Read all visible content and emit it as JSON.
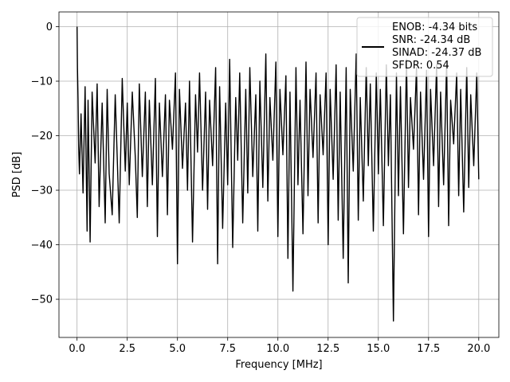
{
  "chart_data": {
    "type": "line",
    "xlabel": "Frequency [MHz]",
    "ylabel": "PSD [dB]",
    "xlim": [
      -0.9,
      21.0
    ],
    "ylim": [
      -57,
      2.7
    ],
    "xticks": [
      0.0,
      2.5,
      5.0,
      7.5,
      10.0,
      12.5,
      15.0,
      17.5,
      20.0
    ],
    "xtick_labels": [
      "0.0",
      "2.5",
      "5.0",
      "7.5",
      "10.0",
      "12.5",
      "15.0",
      "17.5",
      "20.0"
    ],
    "yticks": [
      0,
      -10,
      -20,
      -30,
      -40,
      -50
    ],
    "ytick_labels": [
      "0",
      "−10",
      "−20",
      "−30",
      "−40",
      "−50"
    ],
    "grid": true,
    "legend_position": "top-right",
    "legend": [
      "ENOB: -4.34 bits",
      "SNR: -24.34 dB",
      "SINAD: -24.37 dB",
      "SFDR: 0.54"
    ],
    "series_color": "#000000",
    "series": [
      {
        "values_note_free": true,
        "x": [
          0.0,
          0.02,
          0.05,
          0.08,
          0.12,
          0.2,
          0.3,
          0.4,
          0.5,
          0.55,
          0.65,
          0.75,
          0.9,
          1.0,
          1.1,
          1.25,
          1.4,
          1.5,
          1.6,
          1.75,
          1.9,
          2.0,
          2.1,
          2.25,
          2.4,
          2.5,
          2.6,
          2.75,
          2.9,
          3.0,
          3.1,
          3.25,
          3.4,
          3.5,
          3.6,
          3.75,
          3.9,
          4.0,
          4.1,
          4.25,
          4.4,
          4.5,
          4.6,
          4.75,
          4.9,
          5.0,
          5.1,
          5.25,
          5.4,
          5.5,
          5.6,
          5.75,
          5.9,
          6.0,
          6.1,
          6.25,
          6.4,
          6.5,
          6.6,
          6.75,
          6.9,
          7.0,
          7.1,
          7.25,
          7.4,
          7.5,
          7.6,
          7.75,
          7.9,
          8.0,
          8.1,
          8.25,
          8.4,
          8.5,
          8.6,
          8.75,
          8.9,
          9.0,
          9.1,
          9.25,
          9.4,
          9.5,
          9.6,
          9.75,
          9.9,
          10.0,
          10.1,
          10.25,
          10.4,
          10.5,
          10.6,
          10.75,
          10.9,
          11.0,
          11.1,
          11.25,
          11.4,
          11.5,
          11.6,
          11.75,
          11.9,
          12.0,
          12.1,
          12.25,
          12.4,
          12.5,
          12.6,
          12.75,
          12.9,
          13.0,
          13.1,
          13.25,
          13.4,
          13.5,
          13.6,
          13.75,
          13.9,
          14.0,
          14.1,
          14.25,
          14.4,
          14.5,
          14.6,
          14.75,
          14.9,
          15.0,
          15.1,
          15.25,
          15.4,
          15.5,
          15.6,
          15.75,
          15.9,
          16.0,
          16.1,
          16.25,
          16.4,
          16.5,
          16.6,
          16.75,
          16.9,
          17.0,
          17.1,
          17.25,
          17.4,
          17.5,
          17.6,
          17.75,
          17.9,
          18.0,
          18.1,
          18.25,
          18.4,
          18.5,
          18.6,
          18.75,
          18.9,
          19.0,
          19.1,
          19.25,
          19.4,
          19.5,
          19.6,
          19.75,
          19.9,
          20.0
        ],
        "y": [
          0.0,
          -7.5,
          -13.0,
          -22.0,
          -27.0,
          -16.0,
          -30.5,
          -11.0,
          -37.5,
          -13.5,
          -39.5,
          -12.0,
          -25.0,
          -10.5,
          -33.0,
          -14.0,
          -36.0,
          -11.5,
          -27.0,
          -34.5,
          -12.5,
          -24.0,
          -36.0,
          -9.5,
          -26.5,
          -14.0,
          -29.0,
          -12.0,
          -24.0,
          -35.0,
          -10.5,
          -27.5,
          -12.0,
          -33.0,
          -13.5,
          -29.0,
          -9.5,
          -38.5,
          -14.0,
          -27.5,
          -12.5,
          -34.5,
          -13.5,
          -22.5,
          -8.5,
          -43.5,
          -11.5,
          -26.0,
          -14.0,
          -30.0,
          -10.0,
          -39.5,
          -12.5,
          -23.0,
          -8.5,
          -30.0,
          -12.0,
          -33.5,
          -13.5,
          -25.5,
          -7.5,
          -43.5,
          -11.0,
          -37.0,
          -14.0,
          -29.0,
          -6.0,
          -40.5,
          -13.0,
          -24.5,
          -8.5,
          -36.0,
          -11.5,
          -30.5,
          -7.5,
          -27.5,
          -12.5,
          -37.5,
          -10.0,
          -29.5,
          -5.0,
          -32.0,
          -13.0,
          -24.5,
          -6.5,
          -38.5,
          -11.5,
          -23.5,
          -9.0,
          -42.5,
          -12.0,
          -48.5,
          -7.5,
          -29.0,
          -13.5,
          -38.0,
          -6.5,
          -31.0,
          -11.5,
          -24.0,
          -8.5,
          -36.0,
          -12.5,
          -23.5,
          -8.5,
          -40.0,
          -11.5,
          -28.0,
          -7.0,
          -35.5,
          -12.0,
          -42.5,
          -7.5,
          -47.0,
          -11.5,
          -26.5,
          -5.0,
          -35.5,
          -13.0,
          -32.0,
          -7.5,
          -25.5,
          -10.5,
          -37.5,
          -8.5,
          -27.0,
          -11.5,
          -36.5,
          -7.0,
          -25.5,
          -12.5,
          -54.0,
          -8.5,
          -31.0,
          -11.0,
          -38.0,
          -6.0,
          -29.5,
          -13.0,
          -22.5,
          -7.5,
          -34.5,
          -12.0,
          -28.0,
          -8.0,
          -38.5,
          -11.5,
          -25.5,
          -7.0,
          -33.0,
          -12.0,
          -29.0,
          -6.5,
          -36.5,
          -13.5,
          -21.5,
          -8.5,
          -31.0,
          -11.5,
          -34.0,
          -7.5,
          -29.5,
          -12.5,
          -25.5,
          -8.5,
          -28.0
        ]
      }
    ]
  }
}
